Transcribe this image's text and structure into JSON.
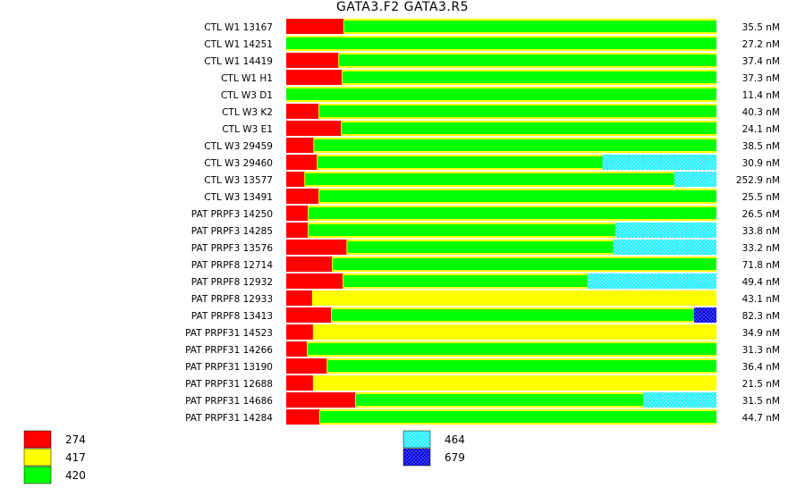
{
  "chart_data": {
    "type": "bar",
    "title": "GATA3.F2  GATA3.R5",
    "stacked": true,
    "unit": "nM",
    "legend": [
      {
        "label": "274",
        "color": "#ff0000",
        "pattern": "solid"
      },
      {
        "label": "417",
        "color": "#ffff00",
        "pattern": "solid"
      },
      {
        "label": "420",
        "color": "#00ff00",
        "pattern": "solid"
      },
      {
        "label": "464",
        "color": "#00ffff",
        "pattern": "checker"
      },
      {
        "label": "679",
        "color": "#0000ff",
        "pattern": "checker"
      }
    ],
    "rows": [
      {
        "label": "CTL W1 13167",
        "conc": "35.5 nM",
        "red": 0.133,
        "green_start": 0.135,
        "green_end": 1.0,
        "cyan": 0,
        "blue": 0
      },
      {
        "label": "CTL W1 14251",
        "conc": "27.2 nM",
        "red": 0,
        "green_start": 0.0,
        "green_end": 1.0,
        "cyan": 0,
        "blue": 0
      },
      {
        "label": "CTL W1 14419",
        "conc": "37.4 nM",
        "red": 0.121,
        "green_start": 0.123,
        "green_end": 1.0,
        "cyan": 0,
        "blue": 0
      },
      {
        "label": "CTL W1 H1",
        "conc": "37.3 nM",
        "red": 0.129,
        "green_start": 0.131,
        "green_end": 1.0,
        "cyan": 0,
        "blue": 0
      },
      {
        "label": "CTL W3 D1",
        "conc": "11.4 nM",
        "red": 0,
        "green_start": 0.0,
        "green_end": 1.0,
        "cyan": 0,
        "blue": 0
      },
      {
        "label": "CTL W3 K2",
        "conc": "40.3 nM",
        "red": 0.075,
        "green_start": 0.077,
        "green_end": 1.0,
        "cyan": 0,
        "blue": 0
      },
      {
        "label": "CTL W3 E1",
        "conc": "24.1 nM",
        "red": 0.127,
        "green_start": 0.129,
        "green_end": 1.0,
        "cyan": 0,
        "blue": 0
      },
      {
        "label": "CTL W3 29459",
        "conc": "38.5 nM",
        "red": 0.063,
        "green_start": 0.065,
        "green_end": 1.0,
        "cyan": 0,
        "blue": 0
      },
      {
        "label": "CTL W3 29460",
        "conc": "30.9 nM",
        "red": 0.071,
        "green_start": 0.073,
        "green_end": 0.735,
        "cyan": 0.265,
        "blue": 0
      },
      {
        "label": "CTL W3 13577",
        "conc": "252.9 nM",
        "red": 0.042,
        "green_start": 0.044,
        "green_end": 0.902,
        "cyan": 0.098,
        "blue": 0
      },
      {
        "label": "CTL W3 13491",
        "conc": "25.5 nM",
        "red": 0.075,
        "green_start": 0.077,
        "green_end": 1.0,
        "cyan": 0,
        "blue": 0
      },
      {
        "label": "PAT PRPF3 14250",
        "conc": "26.5 nM",
        "red": 0.05,
        "green_start": 0.052,
        "green_end": 1.0,
        "cyan": 0,
        "blue": 0
      },
      {
        "label": "PAT PRPF3 14285",
        "conc": "33.8 nM",
        "red": 0.05,
        "green_start": 0.052,
        "green_end": 0.765,
        "cyan": 0.235,
        "blue": 0
      },
      {
        "label": "PAT PRPF3 13576",
        "conc": "33.2 nM",
        "red": 0.14,
        "green_start": 0.142,
        "green_end": 0.76,
        "cyan": 0.24,
        "blue": 0
      },
      {
        "label": "PAT PRPF8 12714",
        "conc": "71.8 nM",
        "red": 0.106,
        "green_start": 0.108,
        "green_end": 1.0,
        "cyan": 0,
        "blue": 0
      },
      {
        "label": "PAT PRPF8 12932",
        "conc": "49.4 nM",
        "red": 0.131,
        "green_start": 0.133,
        "green_end": 0.7,
        "cyan": 0.3,
        "blue": 0
      },
      {
        "label": "PAT PRPF8 12933",
        "conc": "43.1 nM",
        "red": 0.06,
        "green_start": 0,
        "green_end": 0,
        "cyan": 0,
        "blue": 0
      },
      {
        "label": "PAT PRPF8 13413",
        "conc": "82.3 nM",
        "red": 0.104,
        "green_start": 0.106,
        "green_end": 0.948,
        "cyan": 0,
        "blue": 0.052
      },
      {
        "label": "PAT PRPF31 14523",
        "conc": "34.9 nM",
        "red": 0.062,
        "green_start": 0,
        "green_end": 0,
        "cyan": 0,
        "blue": 0
      },
      {
        "label": "PAT PRPF31 14266",
        "conc": "31.3 nM",
        "red": 0.048,
        "green_start": 0.05,
        "green_end": 1.0,
        "cyan": 0,
        "blue": 0
      },
      {
        "label": "PAT PRPF31 13190",
        "conc": "36.4 nM",
        "red": 0.094,
        "green_start": 0.096,
        "green_end": 1.0,
        "cyan": 0,
        "blue": 0
      },
      {
        "label": "PAT PRPF31 12688",
        "conc": "21.5 nM",
        "red": 0.062,
        "green_start": 0,
        "green_end": 0,
        "cyan": 0,
        "blue": 0
      },
      {
        "label": "PAT PRPF31 14686",
        "conc": "31.5 nM",
        "red": 0.16,
        "green_start": 0.162,
        "green_end": 0.83,
        "cyan": 0.17,
        "blue": 0
      },
      {
        "label": "PAT PRPF31 14284",
        "conc": "44.7 nM",
        "red": 0.077,
        "green_start": 0.079,
        "green_end": 1.0,
        "cyan": 0,
        "blue": 0
      }
    ]
  }
}
